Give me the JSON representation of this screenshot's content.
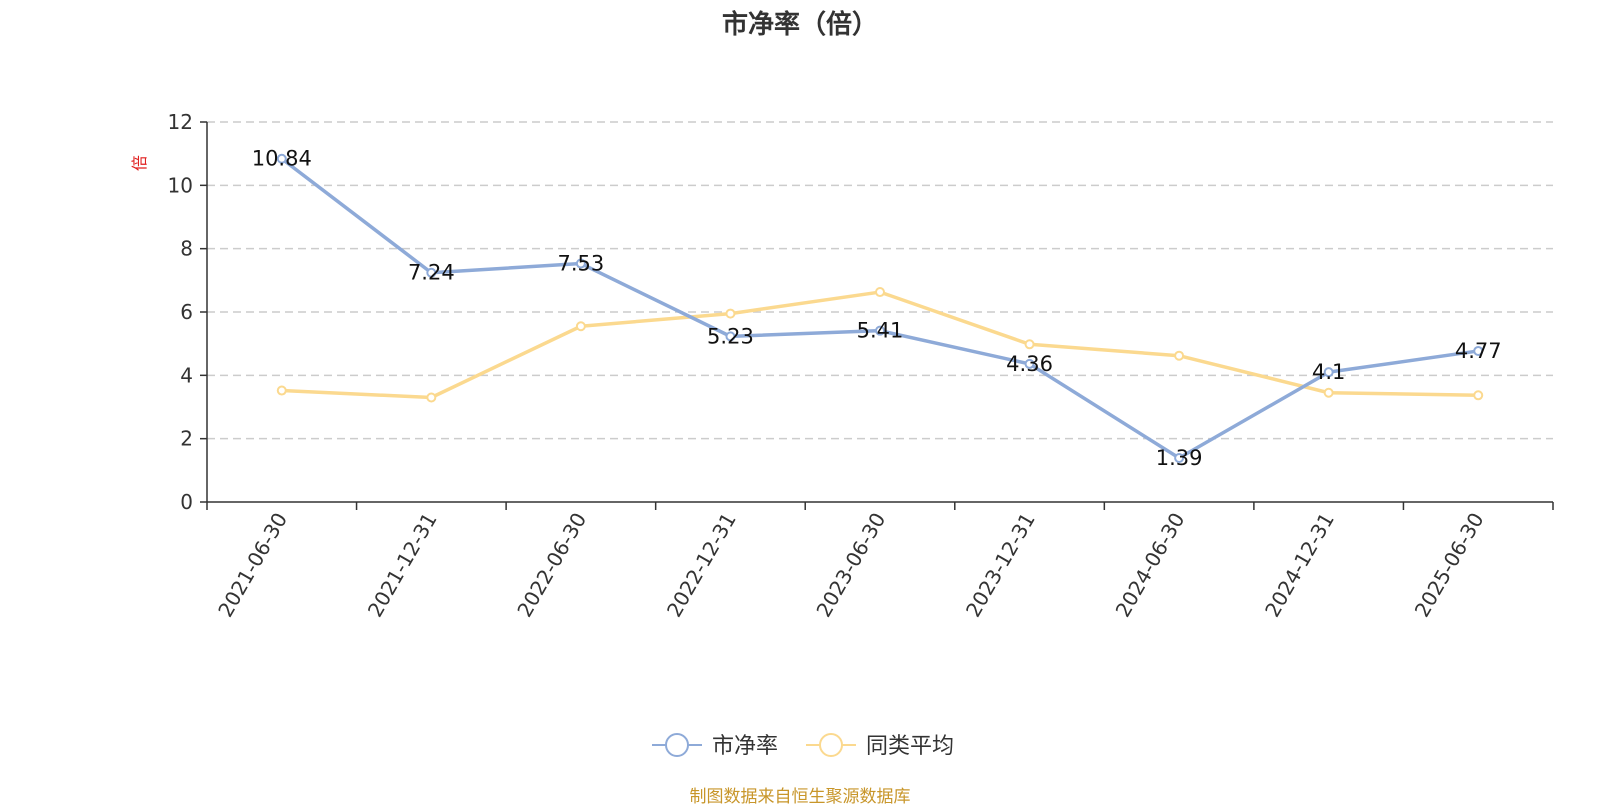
{
  "chart_data": {
    "type": "line",
    "title": "市净率（倍）",
    "ylabel": "倍",
    "xlabel": "",
    "categories": [
      "2021-06-30",
      "2021-12-31",
      "2022-06-30",
      "2022-12-31",
      "2023-06-30",
      "2023-12-31",
      "2024-06-30",
      "2024-12-31",
      "2025-06-30"
    ],
    "ylim": [
      0,
      12
    ],
    "yticks": [
      0,
      2,
      4,
      6,
      8,
      10,
      12
    ],
    "grid": true,
    "legend_position": "bottom",
    "series": [
      {
        "name": "市净率",
        "color": "#8eaad8",
        "values": [
          10.84,
          7.24,
          7.53,
          5.23,
          5.41,
          4.36,
          1.39,
          4.1,
          4.77
        ],
        "labels": [
          "10.84",
          "7.24",
          "7.53",
          "5.23",
          "5.41",
          "4.36",
          "1.39",
          "4.1",
          "4.77"
        ]
      },
      {
        "name": "同类平均",
        "color": "#fbd98f",
        "values": [
          3.52,
          3.3,
          5.55,
          5.95,
          6.63,
          4.98,
          4.62,
          3.45,
          3.37
        ]
      }
    ]
  },
  "footer": "制图数据来自恒生聚源数据库"
}
